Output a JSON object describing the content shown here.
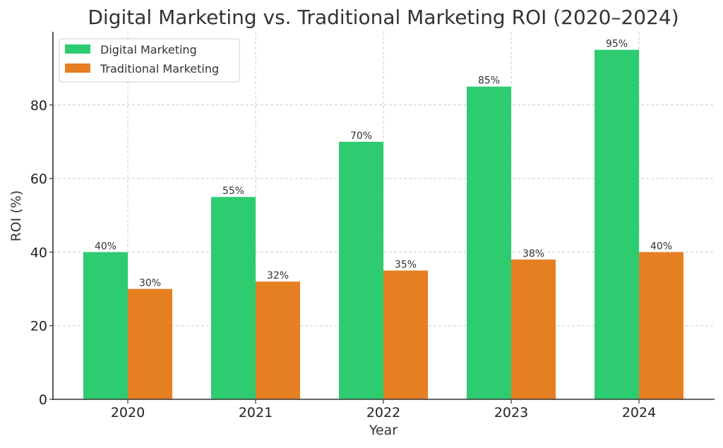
{
  "chart_data": {
    "type": "bar",
    "title": "Digital Marketing vs. Traditional Marketing ROI (2020–2024)",
    "xlabel": "Year",
    "ylabel": "ROI (%)",
    "categories": [
      "2020",
      "2021",
      "2022",
      "2023",
      "2024"
    ],
    "ylim": [
      0,
      100
    ],
    "yticks": [
      0,
      20,
      40,
      60,
      80
    ],
    "grid": true,
    "legend_position": "top-left",
    "series": [
      {
        "name": "Digital Marketing",
        "color": "#2ecc71",
        "values": [
          40,
          55,
          70,
          85,
          95
        ],
        "labels": [
          "40%",
          "55%",
          "70%",
          "85%",
          "95%"
        ]
      },
      {
        "name": "Traditional Marketing",
        "color": "#e67e22",
        "values": [
          30,
          32,
          35,
          38,
          40
        ],
        "labels": [
          "30%",
          "32%",
          "35%",
          "38%",
          "40%"
        ]
      }
    ]
  }
}
